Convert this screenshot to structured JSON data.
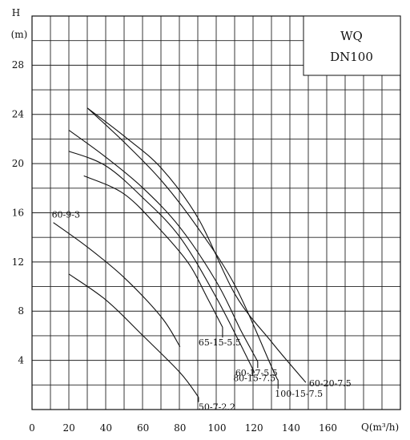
{
  "chart_data": {
    "type": "line",
    "xlabel": "Q(m³/h)",
    "ylabel": "H",
    "yunit": "(m)",
    "xlim": [
      0,
      200
    ],
    "ylim": [
      0,
      32
    ],
    "x_ticks": [
      0,
      20,
      40,
      60,
      80,
      100,
      120,
      140,
      160
    ],
    "y_ticks": [
      4,
      8,
      12,
      16,
      20,
      24,
      28
    ],
    "grid": true,
    "legend_box": {
      "line1": "WQ",
      "line2": "DN100"
    },
    "series": [
      {
        "name": "60-9-3",
        "x": [
          11.5,
          30,
          50,
          70,
          80
        ],
        "y": [
          15.2,
          13.2,
          10.7,
          7.5,
          5.1
        ]
      },
      {
        "name": "50-7-2.2",
        "x": [
          20,
          40,
          60,
          80,
          90
        ],
        "y": [
          11,
          8.9,
          6,
          3.0,
          1.0
        ]
      },
      {
        "name": "65-15-5.5",
        "x": [
          28,
          50,
          70,
          85,
          95,
          103
        ],
        "y": [
          19,
          17.5,
          14.5,
          11.8,
          9,
          6.7
        ]
      },
      {
        "name": "80-15-7.5",
        "x": [
          20,
          40,
          60,
          80,
          100,
          120
        ],
        "y": [
          21,
          19.8,
          17.2,
          14,
          9,
          3.1
        ]
      },
      {
        "name": "60-17-5.5",
        "x": [
          20,
          40,
          60,
          80,
          100,
          113,
          122
        ],
        "y": [
          22.7,
          20.5,
          18,
          14.8,
          10.3,
          6.4,
          3.9
        ]
      },
      {
        "name": "100-15-7.5",
        "x": [
          30,
          50,
          70,
          90,
          110,
          130,
          133
        ],
        "y": [
          24.5,
          21.7,
          18.6,
          14.7,
          10,
          3.3,
          2.4
        ]
      },
      {
        "name": "60-20-7.5",
        "x": [
          30,
          50,
          70,
          90,
          110,
          130,
          148
        ],
        "y": [
          24.5,
          22.2,
          19.6,
          15.5,
          9.3,
          5.4,
          2.2
        ]
      }
    ],
    "curve_labels": [
      {
        "text": "60-9-3",
        "series": "60-9-3"
      },
      {
        "text": "65-15-5.5",
        "series": "65-15-5.5"
      },
      {
        "text": "80-15-7.5",
        "series": "80-15-7.5"
      },
      {
        "text": "60-17-5.5",
        "series": "60-17-5.5"
      },
      {
        "text": "100-15-7.5",
        "series": "100-15-7.5"
      },
      {
        "text": "60-20-7.5",
        "series": "60-20-7.5"
      },
      {
        "text": "50-7-2.2",
        "series": "50-7-2.2"
      }
    ]
  }
}
